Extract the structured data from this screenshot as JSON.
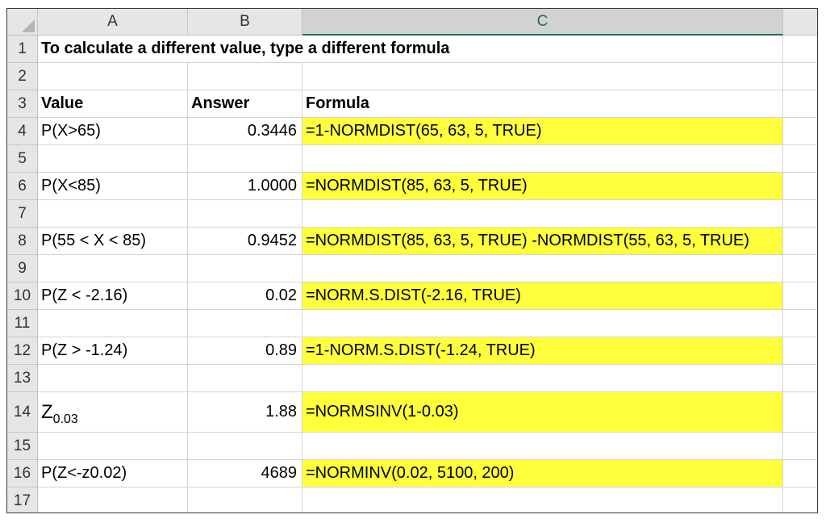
{
  "columns": [
    "A",
    "B",
    "C"
  ],
  "selected_column": "C",
  "rows": [
    {
      "n": "1",
      "a": "To calculate a different value, type a different formula",
      "b": "",
      "c": "",
      "hl": false,
      "bold": true,
      "span": true
    },
    {
      "n": "2",
      "a": "",
      "b": "",
      "c": "",
      "hl": false
    },
    {
      "n": "3",
      "a": "Value",
      "b": "Answer",
      "c": "Formula",
      "hl": false,
      "header": true
    },
    {
      "n": "4",
      "a": "P(X>65)",
      "b": "0.3446",
      "c": "=1-NORMDIST(65, 63, 5, TRUE)",
      "hl": true
    },
    {
      "n": "5",
      "a": "",
      "b": "",
      "c": "",
      "hl": false
    },
    {
      "n": "6",
      "a": "P(X<85)",
      "b": "1.0000",
      "c": "=NORMDIST(85, 63, 5, TRUE)",
      "hl": true
    },
    {
      "n": "7",
      "a": "",
      "b": "",
      "c": "",
      "hl": false
    },
    {
      "n": "8",
      "a": "P(55 < X < 85)",
      "b": "0.9452",
      "c": "=NORMDIST(85, 63, 5, TRUE) -NORMDIST(55, 63, 5, TRUE)",
      "hl": true
    },
    {
      "n": "9",
      "a": "",
      "b": "",
      "c": "",
      "hl": false
    },
    {
      "n": "10",
      "a": "P(Z < -2.16)",
      "b": "0.02",
      "c": "=NORM.S.DIST(-2.16, TRUE)",
      "hl": true
    },
    {
      "n": "11",
      "a": "",
      "b": "",
      "c": "",
      "hl": false
    },
    {
      "n": "12",
      "a": "P(Z > -1.24)",
      "b": "0.89",
      "c": "=1-NORM.S.DIST(-1.24, TRUE)",
      "hl": true
    },
    {
      "n": "13",
      "a": "",
      "b": "",
      "c": "",
      "hl": false
    },
    {
      "n": "14",
      "a": "Z",
      "a_sub": "0.03",
      "b": "1.88",
      "c": "=NORMSINV(1-0.03)",
      "hl": true,
      "tall": true
    },
    {
      "n": "15",
      "a": "",
      "b": "",
      "c": "",
      "hl": false
    },
    {
      "n": "16",
      "a": "P(Z<-z0.02)",
      "b": "4689",
      "c": "=NORMINV(0.02, 5100, 200)",
      "hl": true
    },
    {
      "n": "17",
      "a": "",
      "b": "",
      "c": "",
      "hl": false
    }
  ],
  "colors": {
    "highlight": "#ffff3c",
    "selected_column_accent": "#217346"
  }
}
